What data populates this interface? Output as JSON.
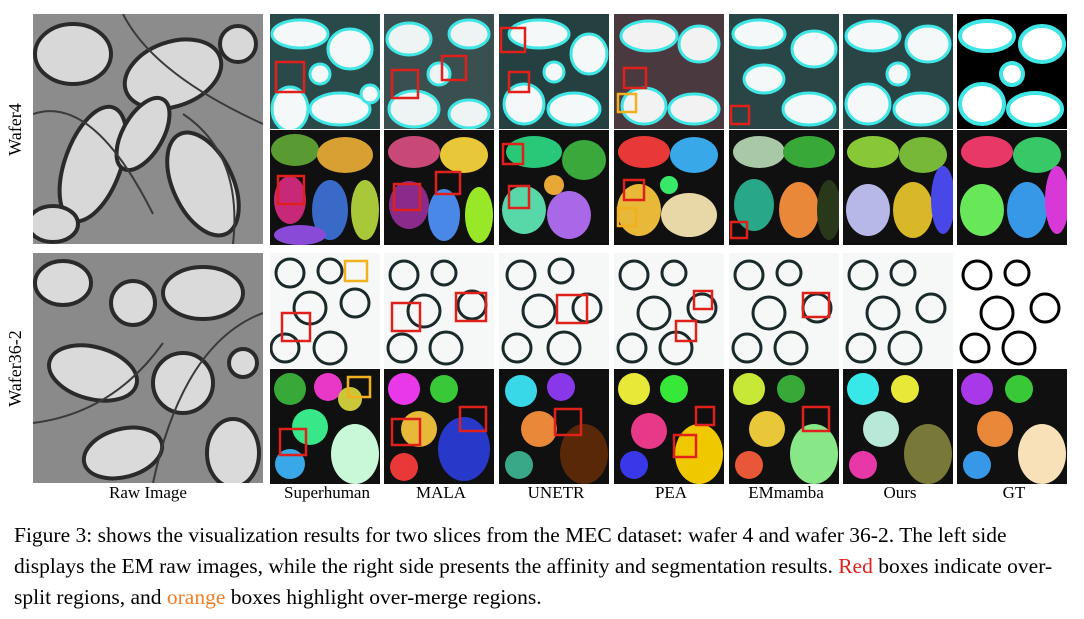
{
  "rows": [
    {
      "label": "Wafer4"
    },
    {
      "label": "Wafer36-2"
    }
  ],
  "columns": {
    "raw": "Raw Image",
    "methods": [
      "Superhuman",
      "MALA",
      "UNETR",
      "PEA",
      "EMmamba",
      "Ours",
      "GT"
    ]
  },
  "caption": {
    "part1": "Figure 3: shows the visualization results for two slices from the MEC dataset: wafer 4 and wafer 36-2. The left side displays the EM raw images, while the right side presents the affinity and segmentation results. ",
    "red_word": "Red",
    "part2": " boxes indicate over-split regions, and ",
    "orange_word": "orange",
    "part3": " boxes highlight over-merge regions."
  },
  "colors": {
    "over_split_box": "#e0201b",
    "over_merge_box": "#f2b01e",
    "affinity_cyan": "#40e6e6"
  }
}
